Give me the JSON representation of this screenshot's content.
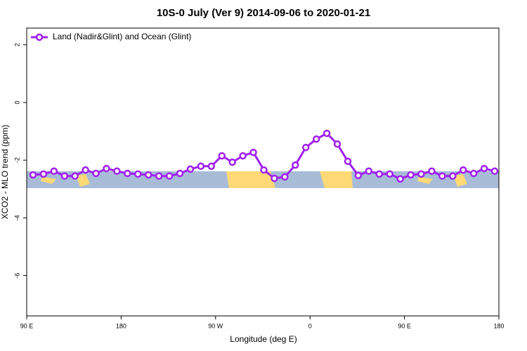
{
  "chart_data": {
    "type": "line",
    "title": "10S-0 July (Ver 9)   2014-09-06 to 2020-01-21",
    "x_label": "Longitude (deg E)",
    "y_label": "XCO2 - MLO trend (ppm)",
    "x": [
      96,
      106,
      116,
      126,
      136,
      146,
      156,
      166,
      176,
      186,
      196,
      206,
      216,
      226,
      236,
      246,
      256,
      266,
      276,
      286,
      296,
      306,
      316,
      326,
      336,
      346,
      356,
      366,
      376,
      386,
      396,
      406,
      416,
      426,
      436,
      446,
      456,
      466,
      476,
      486,
      496,
      506,
      516,
      526,
      536
    ],
    "series": [
      {
        "name": "Land (Nadir&Glint) and Ocean (Glint)",
        "color": "#a020f0",
        "values": [
          -2.51,
          -2.48,
          -2.38,
          -2.55,
          -2.55,
          -2.34,
          -2.46,
          -2.29,
          -2.38,
          -2.46,
          -2.48,
          -2.51,
          -2.55,
          -2.55,
          -2.46,
          -2.31,
          -2.21,
          -2.21,
          -1.85,
          -2.07,
          -1.85,
          -1.73,
          -2.34,
          -2.63,
          -2.58,
          -2.17,
          -1.56,
          -1.27,
          -1.07,
          -1.44,
          -2.04,
          -2.53,
          -2.38,
          -2.48,
          -2.48,
          -2.65,
          -2.51,
          -2.48,
          -2.38,
          -2.55,
          -2.55,
          -2.34,
          -2.46,
          -2.29,
          -2.38
        ]
      }
    ],
    "xlim": [
      90,
      540
    ],
    "xticks": [
      {
        "value": 90,
        "label": "90 E"
      },
      {
        "value": 180,
        "label": "180"
      },
      {
        "value": 270,
        "label": "90 W"
      },
      {
        "value": 360,
        "label": "0"
      },
      {
        "value": 450,
        "label": "90 E"
      },
      {
        "value": 540,
        "label": "180"
      }
    ],
    "ylim": [
      -7.4,
      2.58
    ],
    "yticks": [
      2,
      0,
      -2,
      -4,
      -6
    ],
    "legend": "topleft"
  }
}
